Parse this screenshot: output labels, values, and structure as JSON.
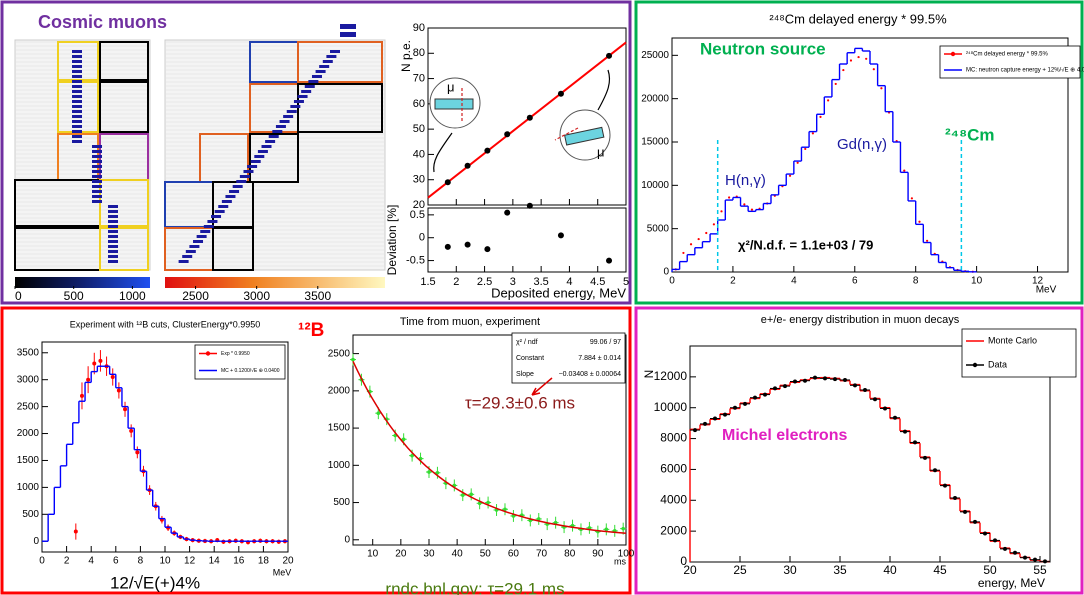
{
  "chart_data": [
    {
      "type": "event-display",
      "title": "Cosmic muons",
      "colorbars": [
        {
          "lim": [
            0,
            1150
          ],
          "ticks": [
            0,
            500,
            1000
          ]
        },
        {
          "lim": [
            2250,
            4050
          ],
          "ticks": [
            2500,
            3000,
            3500
          ]
        }
      ]
    },
    {
      "type": "scatter-fit",
      "ylabel": "N p.e.",
      "xlabel": "Deposited energy, MeV",
      "xlim": [
        1.5,
        5
      ],
      "xticks": [
        1.5,
        2,
        2.5,
        3,
        3.5,
        4,
        4.5,
        5
      ],
      "ylim": [
        20,
        90
      ],
      "yticks": [
        20,
        30,
        40,
        50,
        60,
        70,
        80,
        90
      ],
      "x": [
        1.85,
        2.2,
        2.55,
        2.9,
        3.3,
        3.85,
        4.7
      ],
      "values": [
        29,
        35.5,
        41.5,
        48,
        54.5,
        64,
        79
      ],
      "color": "#000000",
      "fit_line": {
        "x": [
          1.5,
          5
        ],
        "values": [
          22.9,
          84.3
        ],
        "color": "#ff0000"
      },
      "residuals": {
        "ylabel": "Deviation [%]",
        "ylim": [
          -0.75,
          0.65
        ],
        "yticks": [
          -0.5,
          0,
          0.5
        ],
        "values": [
          -0.2,
          -0.15,
          -0.25,
          0.55,
          0.7,
          0.05,
          -0.5
        ]
      },
      "annotations": [
        "μ",
        "μ"
      ]
    },
    {
      "type": "histogram",
      "title": "²⁴⁸Cm delayed energy * 99.5%",
      "xlabel": "MeV",
      "xlim": [
        0,
        13
      ],
      "xticks": [
        0,
        2,
        4,
        6,
        8,
        10,
        12
      ],
      "ylim": [
        0,
        27000
      ],
      "yticks": [
        0,
        5000,
        10000,
        15000,
        20000,
        25000
      ],
      "bins": [
        0,
        0.25,
        0.5,
        0.75,
        1,
        1.25,
        1.5,
        1.75,
        2,
        2.25,
        2.5,
        2.75,
        3,
        3.25,
        3.5,
        3.75,
        4,
        4.25,
        4.5,
        4.75,
        5,
        5.25,
        5.5,
        5.75,
        6,
        6.25,
        6.5,
        6.75,
        7,
        7.25,
        7.5,
        7.75,
        8,
        8.25,
        8.5,
        8.75,
        9,
        9.25,
        9.5,
        9.75,
        10
      ],
      "series": [
        {
          "name": "²⁴⁸Cm delayed energy * 99.5%",
          "color": "#ff0000",
          "style": "points",
          "values": [
            300,
            2200,
            3200,
            3800,
            4500,
            5500,
            7000,
            8600,
            8700,
            7800,
            7200,
            7300,
            7900,
            8800,
            9900,
            11100,
            12600,
            14200,
            16000,
            17900,
            19800,
            21700,
            23300,
            24400,
            24800,
            24600,
            23400,
            21200,
            18400,
            15100,
            11700,
            8500,
            5800,
            3600,
            2100,
            1200,
            550,
            230,
            90,
            30
          ]
        },
        {
          "name": "MC: neutron capture energy + 12%/√E ⊕ 4.0",
          "color": "#0000ff",
          "style": "step",
          "values": [
            300,
            1200,
            2000,
            2800,
            3500,
            4400,
            6000,
            8300,
            8600,
            7600,
            7000,
            7200,
            7900,
            8900,
            10000,
            11300,
            12800,
            14400,
            16200,
            18200,
            20200,
            22200,
            24000,
            25300,
            25800,
            25500,
            24000,
            21500,
            18500,
            15000,
            11500,
            8200,
            5500,
            3400,
            2000,
            1100,
            500,
            200,
            80,
            20
          ]
        }
      ],
      "cut_lines": [
        1.5,
        9.5
      ],
      "cut_color": "#00c8e8",
      "annotations": {
        "panel": "Neutron source",
        "isotope": "²⁴⁸Cm",
        "h_peak": "H(n,γ)",
        "gd_peak": "Gd(n,γ)",
        "chi2": "χ²/N.d.f. = 1.1e+03 / 79"
      }
    },
    {
      "type": "histogram",
      "title": "Experiment with ¹²B cuts, ClusterEnergy*0.9950",
      "xlabel": "MeV",
      "xlim": [
        0,
        20
      ],
      "xticks": [
        0,
        2,
        4,
        6,
        8,
        10,
        12,
        14,
        16,
        18,
        20
      ],
      "ylim": [
        -200,
        3700
      ],
      "yticks": [
        0,
        500,
        1000,
        1500,
        2000,
        2500,
        3000,
        3500
      ],
      "bins": [
        0,
        0.5,
        1,
        1.5,
        2,
        2.5,
        3,
        3.5,
        4,
        4.5,
        5,
        5.5,
        6,
        6.5,
        7,
        7.5,
        8,
        8.5,
        9,
        9.5,
        10,
        10.5,
        11,
        11.5,
        12,
        12.5,
        13,
        13.5,
        14,
        14.5,
        15,
        15.5,
        16,
        16.5,
        17,
        17.5,
        18,
        18.5,
        19,
        19.5,
        20
      ],
      "series": [
        {
          "name": "Exp * 0.9950",
          "color": "#ff0000",
          "style": "points",
          "values": [
            null,
            null,
            null,
            null,
            null,
            180,
            2700,
            3000,
            3300,
            3350,
            3250,
            3050,
            2800,
            2450,
            2050,
            1650,
            1300,
            950,
            650,
            400,
            250,
            150,
            80,
            40,
            20,
            10,
            5,
            0,
            20,
            -10,
            0,
            10,
            0,
            -20,
            0,
            10,
            0,
            0,
            -10,
            0
          ],
          "errors": [
            null,
            null,
            null,
            null,
            null,
            150,
            250,
            250,
            200,
            200,
            180,
            160,
            150,
            140,
            120,
            110,
            100,
            90,
            80,
            70,
            60,
            50,
            40,
            40,
            40,
            40,
            40,
            40,
            40,
            40,
            40,
            40,
            40,
            40,
            40,
            40,
            40,
            40,
            40,
            40
          ]
        },
        {
          "name": "MC + 0.1200/√E ⊕ 0.0400",
          "color": "#0000ff",
          "style": "step",
          "values": [
            0,
            500,
            1000,
            1400,
            1800,
            2200,
            2600,
            2950,
            3150,
            3250,
            3250,
            3100,
            2850,
            2500,
            2100,
            1700,
            1300,
            950,
            650,
            420,
            260,
            150,
            80,
            40,
            20,
            10,
            5,
            0,
            0,
            0,
            0,
            0,
            0,
            0,
            0,
            0,
            0,
            0,
            0,
            0
          ]
        }
      ],
      "annotations": {
        "panel": "¹²B",
        "resolution": "12/√E(+)4%"
      }
    },
    {
      "type": "scatter-exp",
      "title": "Time from muon, experiment",
      "xlabel": "ms",
      "xlim": [
        3,
        100
      ],
      "xticks": [
        10,
        20,
        30,
        40,
        50,
        60,
        70,
        80,
        90,
        100
      ],
      "ylim": [
        -70,
        2750
      ],
      "yticks": [
        0,
        500,
        1000,
        1500,
        2000,
        2500
      ],
      "x": [
        3,
        6,
        9,
        12,
        15,
        18,
        21,
        24,
        27,
        30,
        33,
        36,
        39,
        42,
        45,
        48,
        51,
        54,
        57,
        60,
        63,
        66,
        69,
        72,
        75,
        78,
        81,
        84,
        87,
        90,
        93,
        96,
        99
      ],
      "values": [
        2420,
        2150,
        1990,
        1700,
        1620,
        1400,
        1350,
        1130,
        1090,
        910,
        900,
        760,
        730,
        600,
        610,
        490,
        500,
        400,
        410,
        320,
        330,
        260,
        280,
        210,
        230,
        170,
        190,
        140,
        160,
        110,
        140,
        120,
        150
      ],
      "error": 80,
      "color": "#33dd33",
      "fit": {
        "constant": 7.884,
        "slope": -0.03408,
        "color": "#dd0000"
      },
      "stats": [
        [
          "χ² / ndf",
          "99.06 / 97"
        ],
        [
          "Constant",
          "7.884 ± 0.014"
        ],
        [
          "Slope",
          "−0.03408 ± 0.00064"
        ]
      ],
      "annotations": {
        "tau": "τ=29.3±0.6 ms",
        "reference": "rndc.bnl.gov: τ=29.1 ms"
      }
    },
    {
      "type": "histogram",
      "title": "e+/e- energy distribution in muon decays",
      "xlabel": "energy, MeV",
      "ylabel": "N",
      "xlim": [
        20,
        56
      ],
      "xticks": [
        20,
        25,
        30,
        35,
        40,
        45,
        50,
        55
      ],
      "ylim": [
        0,
        14000
      ],
      "yticks": [
        0,
        2000,
        4000,
        6000,
        8000,
        10000,
        12000
      ],
      "bins": [
        20,
        21,
        22,
        23,
        24,
        25,
        26,
        27,
        28,
        29,
        30,
        31,
        32,
        33,
        34,
        35,
        36,
        37,
        38,
        39,
        40,
        41,
        42,
        43,
        44,
        45,
        46,
        47,
        48,
        49,
        50,
        51,
        52,
        53,
        54,
        55,
        56
      ],
      "series": [
        {
          "name": "Monte Carlo",
          "color": "#ff0000",
          "style": "step",
          "values": [
            8600,
            8900,
            9250,
            9600,
            9950,
            10300,
            10600,
            10900,
            11200,
            11450,
            11650,
            11800,
            11900,
            11950,
            11900,
            11750,
            11500,
            11100,
            10600,
            10000,
            9300,
            8500,
            7700,
            6800,
            5900,
            5000,
            4100,
            3300,
            2550,
            1900,
            1350,
            900,
            550,
            300,
            120,
            30
          ]
        },
        {
          "name": "Data",
          "color": "#000000",
          "style": "points",
          "values": [
            8550,
            8950,
            9300,
            9550,
            10000,
            10250,
            10650,
            10850,
            11250,
            11400,
            11700,
            11750,
            11950,
            11900,
            11850,
            11800,
            11450,
            11150,
            10550,
            9950,
            9350,
            8450,
            7750,
            6750,
            5950,
            4950,
            4150,
            3250,
            2600,
            1850,
            1400,
            850,
            600,
            280,
            150,
            40
          ]
        }
      ],
      "annotations": {
        "panel": "Michel electrons"
      }
    }
  ]
}
